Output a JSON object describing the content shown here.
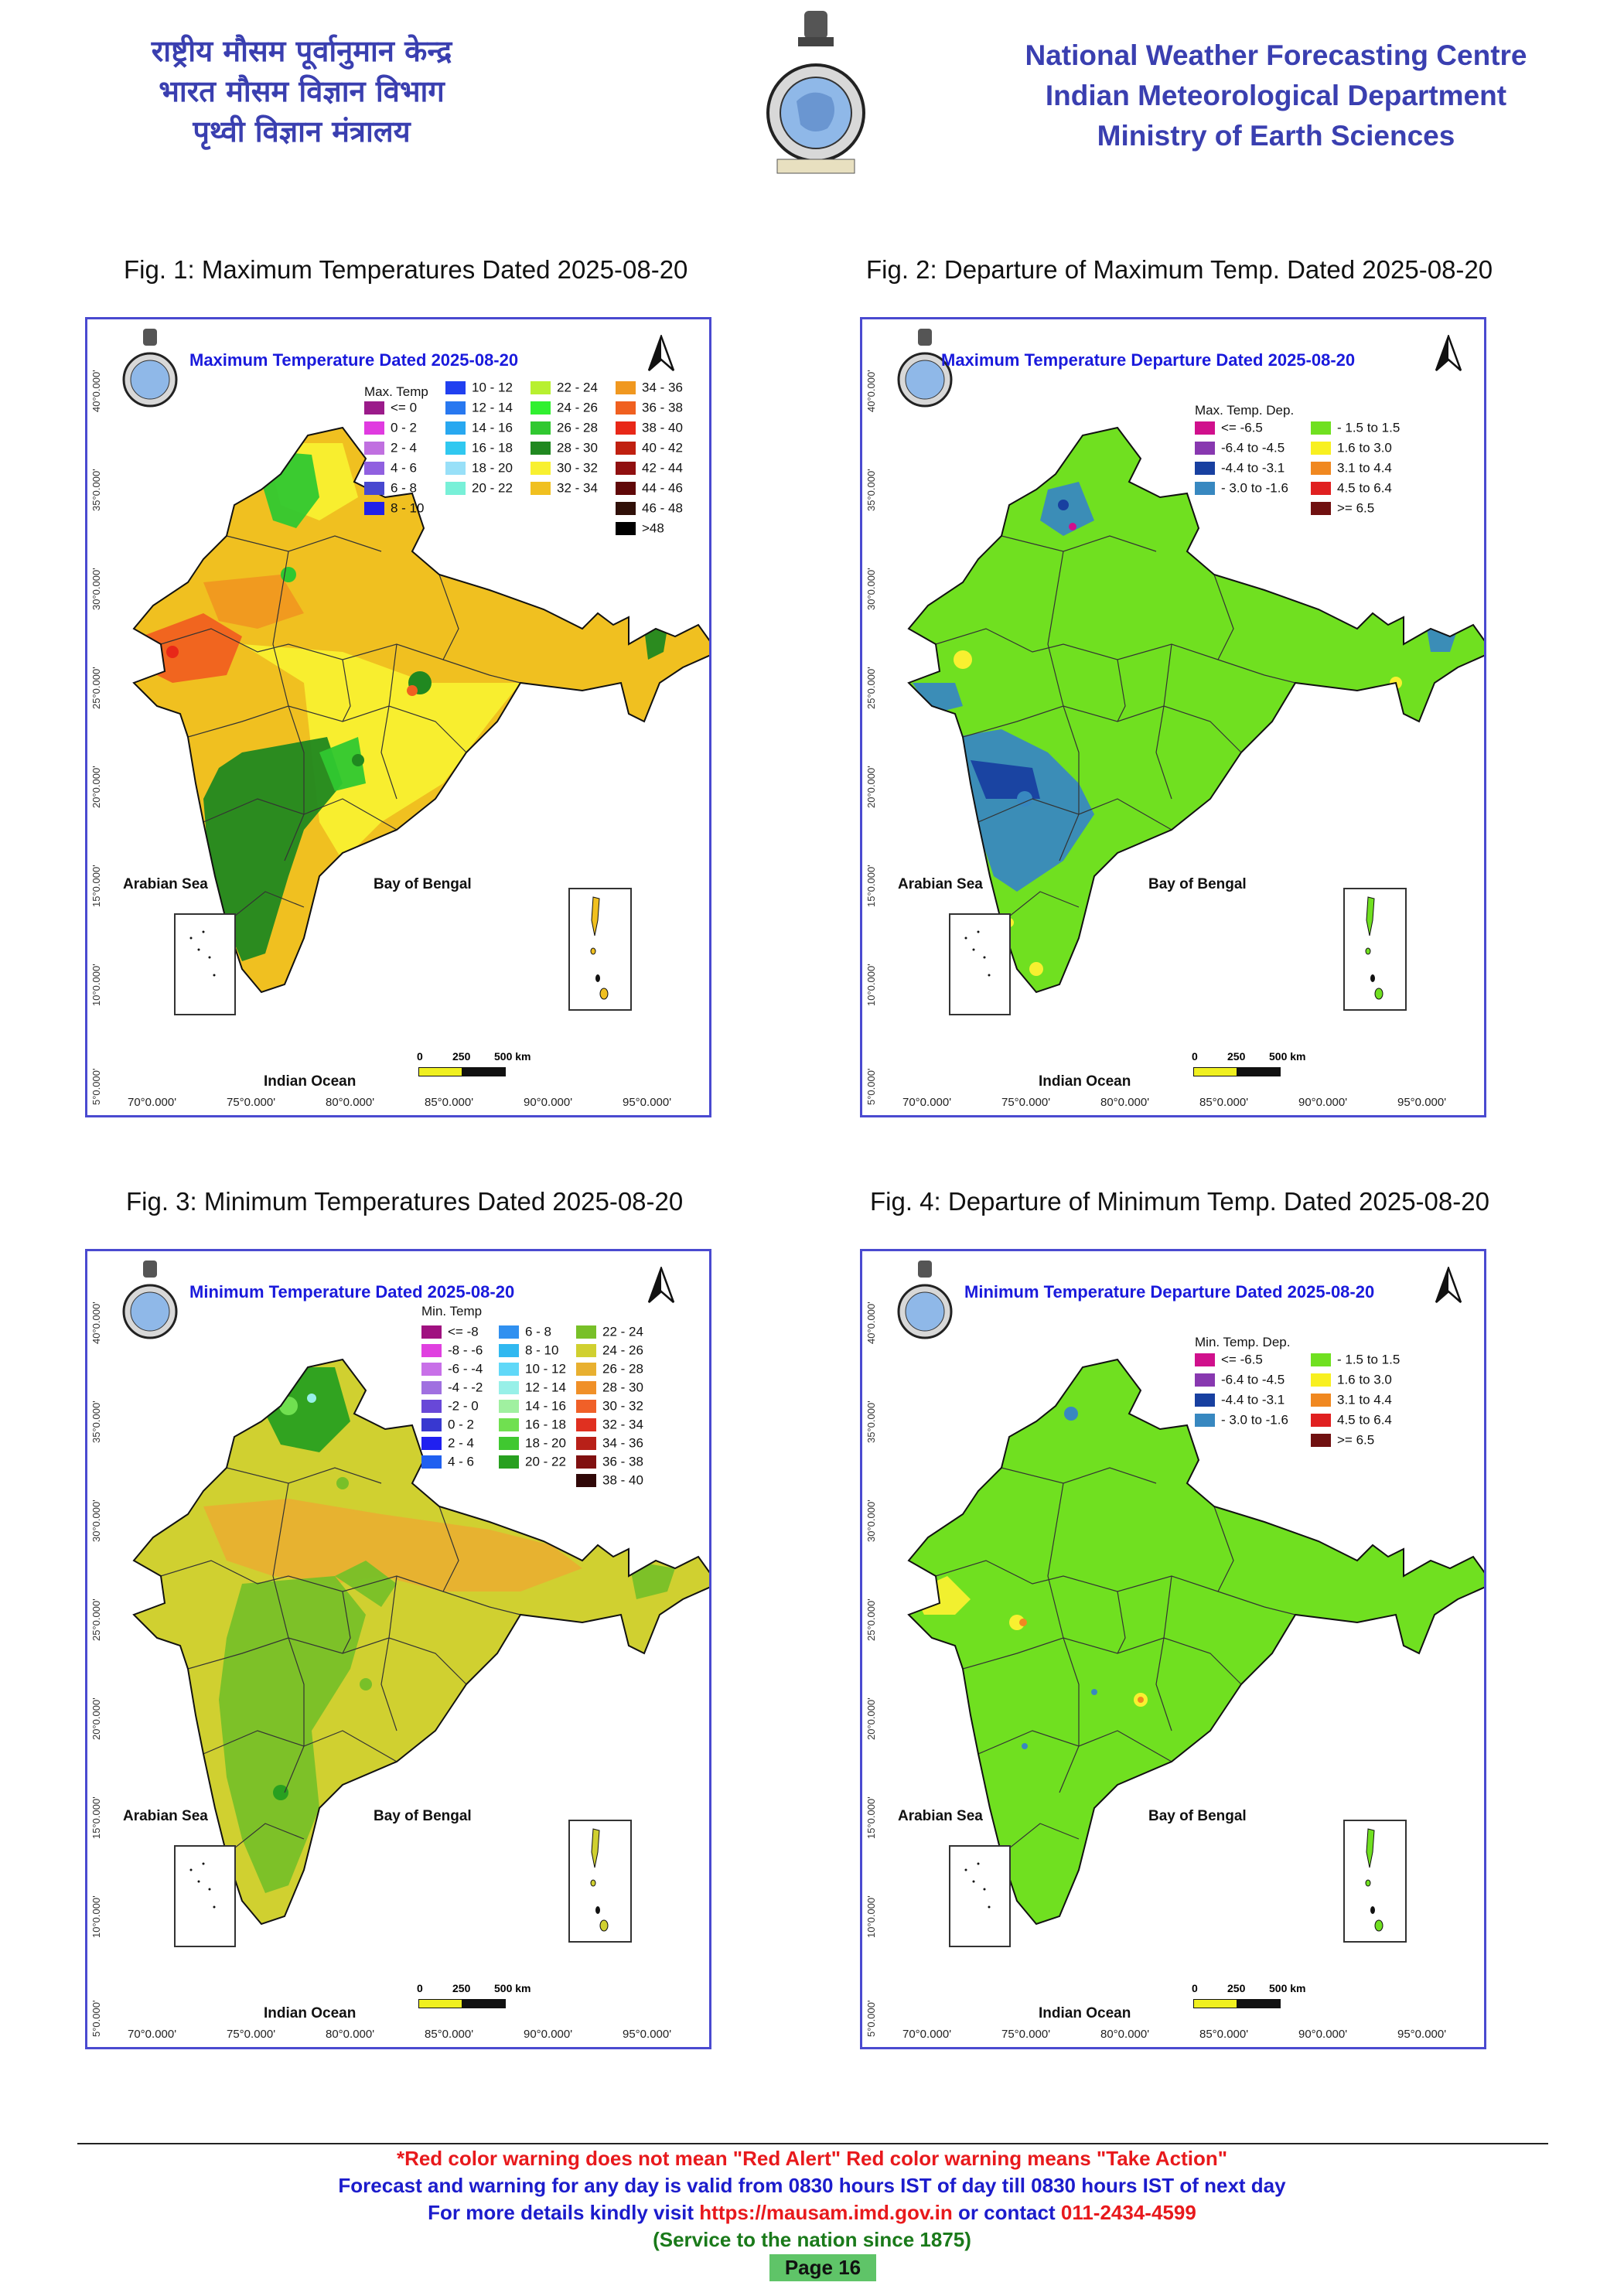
{
  "header": {
    "hindi_lines": [
      "राष्ट्रीय मौसम पूर्वानुमान केन्द्र",
      "भारत मौसम विज्ञान विभाग",
      "पृथ्वी विज्ञान मंत्रालय"
    ],
    "english_lines": [
      "National Weather Forecasting Centre",
      "Indian Meteorological Department",
      "Ministry of Earth Sciences"
    ]
  },
  "figures": [
    {
      "caption": "Fig. 1: Maximum Temperatures Dated 2025-08-20",
      "title": "Maximum Temperature Dated 2025-08-20",
      "legend_title": "Max. Temp",
      "legend": [
        {
          "label": "<= 0",
          "color": "#9b1b8a"
        },
        {
          "label": "0 - 2",
          "color": "#e03be0"
        },
        {
          "label": "2 - 4",
          "color": "#c070e0"
        },
        {
          "label": "4 - 6",
          "color": "#9060e0"
        },
        {
          "label": "6 - 8",
          "color": "#4848d0"
        },
        {
          "label": "8 - 10",
          "color": "#2020e8"
        },
        {
          "label": "10 - 12",
          "color": "#2040f0"
        },
        {
          "label": "12 - 14",
          "color": "#2878f0"
        },
        {
          "label": "14 - 16",
          "color": "#28a8f0"
        },
        {
          "label": "16 - 18",
          "color": "#30c8f0"
        },
        {
          "label": "18 - 20",
          "color": "#98e0f8"
        },
        {
          "label": "20 - 22",
          "color": "#78f0d8"
        },
        {
          "label": "22 - 24",
          "color": "#b8f030"
        },
        {
          "label": "24 - 26",
          "color": "#30f030"
        },
        {
          "label": "26 - 28",
          "color": "#30c830"
        },
        {
          "label": "28 - 30",
          "color": "#208820"
        },
        {
          "label": "30 - 32",
          "color": "#f8f030"
        },
        {
          "label": "32 - 34",
          "color": "#f0c020"
        },
        {
          "label": "34 - 36",
          "color": "#f09820"
        },
        {
          "label": "36 - 38",
          "color": "#f06020"
        },
        {
          "label": "38 - 40",
          "color": "#e82818"
        },
        {
          "label": "40 - 42",
          "color": "#c02010"
        },
        {
          "label": "42 - 44",
          "color": "#901010"
        },
        {
          "label": "44 - 46",
          "color": "#600808"
        },
        {
          "label": "46 - 48",
          "color": "#301008"
        },
        {
          "label": ">48",
          "color": "#000000"
        }
      ]
    },
    {
      "caption": "Fig. 2: Departure of Maximum Temp. Dated 2025-08-20",
      "title": "Maximum Temperature Departure Dated 2025-08-20",
      "legend_title": "Max. Temp. Dep.",
      "legend": [
        {
          "label": "<= -6.5",
          "color": "#d0108c"
        },
        {
          "label": "-6.4 to -4.5",
          "color": "#8838b0"
        },
        {
          "label": "-4.4 to -3.1",
          "color": "#1840a0"
        },
        {
          "label": "- 3.0 to -1.6",
          "color": "#3888c0"
        },
        {
          "label": "- 1.5 to 1.5",
          "color": "#70e020"
        },
        {
          "label": "1.6 to  3.0",
          "color": "#f8f020"
        },
        {
          "label": "3.1 to 4.4",
          "color": "#f08820"
        },
        {
          "label": "4.5 to 6.4",
          "color": "#e02020"
        },
        {
          "label": ">= 6.5",
          "color": "#701010"
        }
      ]
    },
    {
      "caption": "Fig. 3: Minimum Temperatures Dated 2025-08-20",
      "title": "Minimum Temperature Dated 2025-08-20",
      "legend_title": "Min. Temp",
      "legend": [
        {
          "label": "<= -8",
          "color": "#a01080"
        },
        {
          "label": "-8 - -6",
          "color": "#e040e0"
        },
        {
          "label": "-6 - -4",
          "color": "#c870e8"
        },
        {
          "label": "-4 - -2",
          "color": "#a070e0"
        },
        {
          "label": "-2 - 0",
          "color": "#6848d8"
        },
        {
          "label": "0 - 2",
          "color": "#3838d0"
        },
        {
          "label": "2 - 4",
          "color": "#2020f0"
        },
        {
          "label": "4 - 6",
          "color": "#2060f0"
        },
        {
          "label": "6 - 8",
          "color": "#3090f0"
        },
        {
          "label": "8 - 10",
          "color": "#30b8f0"
        },
        {
          "label": "10 - 12",
          "color": "#60d8f8"
        },
        {
          "label": "12 - 14",
          "color": "#98f0e8"
        },
        {
          "label": "14 - 16",
          "color": "#a0f0a0"
        },
        {
          "label": "16 - 18",
          "color": "#70e050"
        },
        {
          "label": "18 - 20",
          "color": "#40c830"
        },
        {
          "label": "20 - 22",
          "color": "#28a020"
        },
        {
          "label": "22 - 24",
          "color": "#78c028"
        },
        {
          "label": "24 - 26",
          "color": "#d0d030"
        },
        {
          "label": "26 - 28",
          "color": "#e8b030"
        },
        {
          "label": "28 - 30",
          "color": "#f09028"
        },
        {
          "label": "30 - 32",
          "color": "#f06028"
        },
        {
          "label": "32 - 34",
          "color": "#e03020"
        },
        {
          "label": "34 - 36",
          "color": "#b82018"
        },
        {
          "label": "36 - 38",
          "color": "#801010"
        },
        {
          "label": "38 - 40",
          "color": "#300808"
        }
      ]
    },
    {
      "caption": "Fig. 4: Departure of Minimum Temp. Dated 2025-08-20",
      "title": "Minimum Temperature Departure Dated 2025-08-20",
      "legend_title": "Min. Temp. Dep.",
      "legend": [
        {
          "label": "<= -6.5",
          "color": "#d0108c"
        },
        {
          "label": "-6.4 to -4.5",
          "color": "#8838b0"
        },
        {
          "label": "-4.4 to -3.1",
          "color": "#1840a0"
        },
        {
          "label": "- 3.0 to -1.6",
          "color": "#3888c0"
        },
        {
          "label": "- 1.5 to 1.5",
          "color": "#70e020"
        },
        {
          "label": "1.6 to  3.0",
          "color": "#f8f020"
        },
        {
          "label": "3.1 to 4.4",
          "color": "#f08820"
        },
        {
          "label": "4.5 to 6.4",
          "color": "#e02020"
        },
        {
          "label": ">= 6.5",
          "color": "#701010"
        }
      ]
    }
  ],
  "map_labels": {
    "arabian_sea": "Arabian Sea",
    "bay_of_bengal": "Bay of Bengal",
    "indian_ocean": "Indian Ocean",
    "scale": [
      "0",
      "250",
      "500 km"
    ],
    "longitudes": [
      "70°0.000'",
      "75°0.000'",
      "80°0.000'",
      "85°0.000'",
      "90°0.000'",
      "95°0.000'"
    ],
    "latitudes": [
      "40°0.000'",
      "35°0.000'",
      "30°0.000'",
      "25°0.000'",
      "20°0.000'",
      "15°0.000'",
      "10°0.000'",
      "5°0.000'"
    ]
  },
  "footer": {
    "line1": "*Red color warning does not mean \"Red Alert\" Red color warning means \"Take Action\"",
    "line2": "Forecast and warning for any day is valid from 0830 hours IST of day till 0830 hours IST of next day",
    "line3_prefix": "For more details kindly visit ",
    "line3_url": "https://mausam.imd.gov.in",
    "line3_mid": " or contact ",
    "line3_phone": "011-2434-4599",
    "line4": "(Service to the nation since 1875)",
    "page": "Page 16",
    "colors": {
      "red": "#e8191c",
      "blue": "#1c1ccc",
      "green": "#1a7a1a"
    }
  }
}
